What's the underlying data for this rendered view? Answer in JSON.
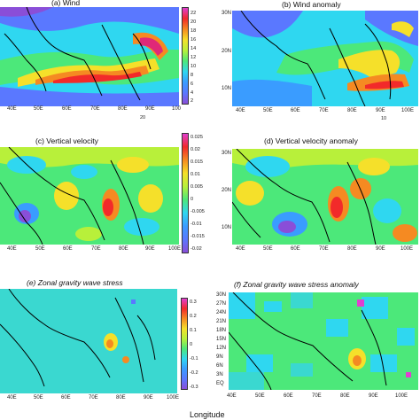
{
  "panels": [
    {
      "id": "a",
      "title": "(a) Wind",
      "lats": [],
      "lons": [
        "40E",
        "50E",
        "60E",
        "70E",
        "80E",
        "90E",
        "100"
      ],
      "cbar": [
        "22",
        "20",
        "18",
        "16",
        "14",
        "12",
        "10",
        "8",
        "6",
        "4",
        "2"
      ],
      "ref": "20",
      "colors": {
        "low": "#5a6ee0",
        "high": "#f22a2a"
      }
    },
    {
      "id": "b",
      "title": "(b) Wind anomaly",
      "lats": [
        "30N",
        "20N",
        "10N"
      ],
      "lons": [
        "40E",
        "50E",
        "60E",
        "70E",
        "80E",
        "90E",
        "100E"
      ],
      "cbar": [],
      "ref": "10"
    },
    {
      "id": "c",
      "title": "(c) Vertical velocity",
      "lats": [],
      "lons": [
        "40E",
        "50E",
        "60E",
        "70E",
        "80E",
        "90E",
        "100E"
      ],
      "cbar": [
        "0.025",
        "0.02",
        "0.015",
        "0.01",
        "0.005",
        "0",
        "-0.005",
        "-0.01",
        "-0.015",
        "-0.02"
      ],
      "ref": ""
    },
    {
      "id": "d",
      "title": "(d) Vertical velocity anomaly",
      "lats": [
        "30N",
        "20N",
        "10N"
      ],
      "lons": [
        "40E",
        "50E",
        "60E",
        "70E",
        "80E",
        "90E",
        "100E"
      ],
      "cbar": [],
      "ref": ""
    },
    {
      "id": "e",
      "title": "(e) Zonal gravity wave stress",
      "lats": [],
      "lons": [
        "40E",
        "50E",
        "60E",
        "70E",
        "80E",
        "90E",
        "100E"
      ],
      "cbar": [
        "0.3",
        "0.2",
        "0.1",
        "0",
        "-0.1",
        "-0.2",
        "-0.3"
      ],
      "ref": ""
    },
    {
      "id": "f",
      "title": "(f) Zonal gravity wave stress anomaly",
      "lats": [
        "30N",
        "27N",
        "24N",
        "21N",
        "18N",
        "15N",
        "12N",
        "9N",
        "6N",
        "3N",
        "EQ"
      ],
      "lons": [
        "40E",
        "50E",
        "60E",
        "70E",
        "80E",
        "90E",
        "100E"
      ],
      "cbar": [],
      "ref": ""
    }
  ],
  "xlabel": "Longitude"
}
